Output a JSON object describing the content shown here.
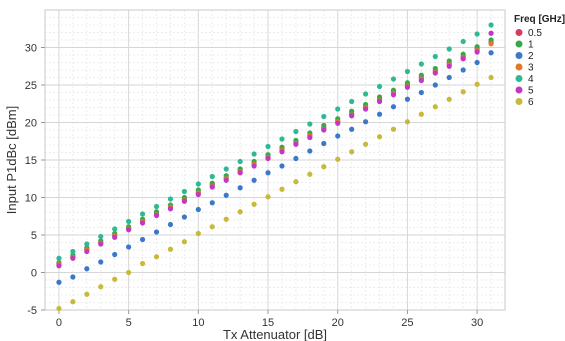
{
  "chart_data": {
    "type": "scatter",
    "title": "",
    "xlabel": "Tx Attenuator [dB]",
    "ylabel": "Input P1dBc [dBm]",
    "xlim": [
      -1,
      32
    ],
    "ylim": [
      -5,
      35
    ],
    "xticks": [
      0,
      5,
      10,
      15,
      20,
      25,
      30
    ],
    "yticks": [
      -5,
      0,
      5,
      10,
      15,
      20,
      25,
      30
    ],
    "grid": true,
    "legend_title": "Freq [GHz]",
    "legend_position": "right",
    "x": [
      0,
      1,
      2,
      3,
      4,
      5,
      6,
      7,
      8,
      9,
      10,
      11,
      12,
      13,
      14,
      15,
      16,
      17,
      18,
      19,
      20,
      21,
      22,
      23,
      24,
      25,
      26,
      27,
      28,
      29,
      30,
      31
    ],
    "series": [
      {
        "name": "0.5",
        "color": "#d63a5e",
        "values": [
          1.2,
          2.1,
          3.1,
          4.0,
          5.0,
          5.9,
          6.9,
          7.8,
          8.8,
          9.8,
          10.7,
          11.7,
          12.6,
          13.6,
          14.5,
          15.5,
          16.4,
          17.4,
          18.3,
          19.3,
          20.2,
          21.2,
          22.2,
          23.1,
          24.1,
          25.0,
          26.0,
          26.9,
          27.9,
          28.8,
          29.8,
          30.7
        ]
      },
      {
        "name": "1",
        "color": "#3aa84a",
        "values": [
          1.3,
          2.3,
          3.3,
          4.2,
          5.2,
          6.1,
          7.1,
          8.1,
          9.0,
          10.0,
          11.0,
          11.9,
          12.9,
          13.8,
          14.8,
          15.7,
          16.7,
          17.6,
          18.6,
          19.6,
          20.5,
          21.5,
          22.4,
          23.4,
          24.3,
          25.3,
          26.3,
          27.2,
          28.2,
          29.1,
          30.1,
          31.0
        ]
      },
      {
        "name": "2",
        "color": "#3b78c8",
        "values": [
          -1.3,
          -0.6,
          0.5,
          1.4,
          2.4,
          3.4,
          4.4,
          5.4,
          6.4,
          7.4,
          8.4,
          9.3,
          10.3,
          11.3,
          12.3,
          13.3,
          14.2,
          15.2,
          16.2,
          17.2,
          18.2,
          19.1,
          20.1,
          21.1,
          22.1,
          23.1,
          24.0,
          25.0,
          26.0,
          27.0,
          28.0,
          29.3
        ]
      },
      {
        "name": "3",
        "color": "#e07a2a",
        "values": [
          1.1,
          2.0,
          3.0,
          3.9,
          4.9,
          5.8,
          6.8,
          7.7,
          8.7,
          9.6,
          10.6,
          11.5,
          12.5,
          13.4,
          14.4,
          15.3,
          16.3,
          17.2,
          18.2,
          19.1,
          20.1,
          21.0,
          22.0,
          22.9,
          23.9,
          24.8,
          25.8,
          26.7,
          27.7,
          28.6,
          29.6,
          30.5
        ]
      },
      {
        "name": "4",
        "color": "#2fb896",
        "values": [
          1.9,
          2.8,
          3.8,
          4.8,
          5.8,
          6.8,
          7.8,
          8.8,
          9.8,
          10.8,
          11.8,
          12.8,
          13.8,
          14.8,
          15.8,
          16.8,
          17.8,
          18.8,
          19.8,
          20.8,
          21.8,
          22.8,
          23.8,
          24.8,
          25.8,
          26.8,
          27.8,
          28.8,
          29.8,
          30.8,
          31.8,
          33.0
        ]
      },
      {
        "name": "5",
        "color": "#c238c4",
        "values": [
          0.9,
          1.9,
          2.8,
          3.8,
          4.7,
          5.7,
          6.6,
          7.6,
          8.5,
          9.5,
          10.4,
          11.4,
          12.3,
          13.3,
          14.2,
          15.2,
          16.1,
          17.1,
          18.0,
          19.0,
          19.9,
          20.9,
          21.8,
          22.8,
          23.7,
          24.7,
          25.6,
          26.6,
          27.5,
          28.5,
          29.4,
          31.9
        ]
      },
      {
        "name": "6",
        "color": "#c8b93a",
        "values": [
          -4.8,
          -3.9,
          -2.9,
          -1.9,
          -0.9,
          0.0,
          1.2,
          2.1,
          3.1,
          4.1,
          5.2,
          6.1,
          7.1,
          8.1,
          9.1,
          10.1,
          11.1,
          12.1,
          13.1,
          14.1,
          15.1,
          16.1,
          17.1,
          18.1,
          19.1,
          20.1,
          21.1,
          22.1,
          23.1,
          24.1,
          25.1,
          26.0
        ]
      }
    ]
  }
}
